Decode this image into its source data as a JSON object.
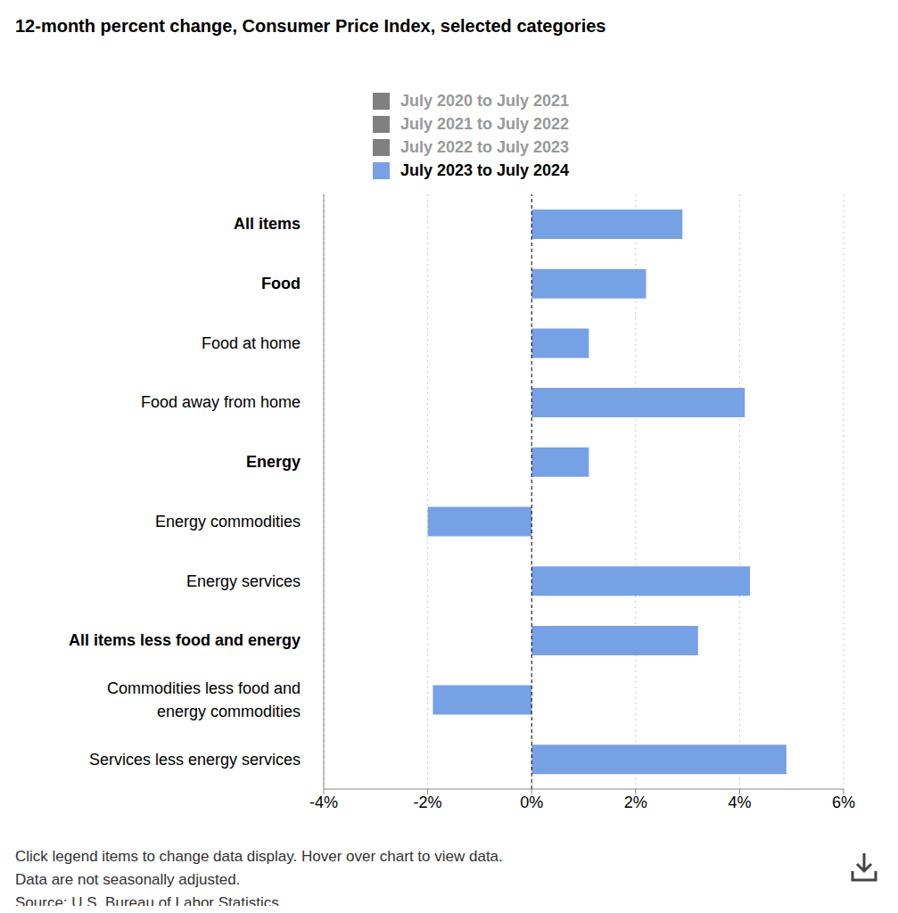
{
  "chart_data": {
    "type": "bar",
    "title": "12-month percent change, Consumer Price Index, selected categories",
    "orientation": "horizontal",
    "grid": true,
    "legend": "top",
    "categories": [
      "All items",
      "Food",
      "Food at home",
      "Food away from home",
      "Energy",
      "Energy commodities",
      "Energy services",
      "All items less food and energy",
      "Commodities less food and energy commodities",
      "Services less energy services"
    ],
    "series": [
      {
        "name": "July 2020 to July 2021",
        "color": "#808080",
        "values": [
          null,
          null,
          null,
          null,
          null,
          null,
          null,
          null,
          null,
          null
        ]
      },
      {
        "name": "July 2021 to July 2022",
        "color": "#808080",
        "values": [
          null,
          null,
          null,
          null,
          null,
          null,
          null,
          null,
          null,
          null
        ]
      },
      {
        "name": "July 2022 to July 2023",
        "color": "#808080",
        "values": [
          null,
          null,
          null,
          null,
          null,
          null,
          null,
          null,
          null,
          null
        ]
      },
      {
        "name": "July 2023 to July 2024",
        "color": "#77a1e5",
        "values": [
          2.9,
          2.2,
          1.1,
          4.1,
          1.1,
          -2.0,
          4.2,
          3.2,
          -1.9,
          4.9
        ]
      }
    ],
    "xlim": [
      -4,
      6
    ],
    "xticks": [
      {
        "value": -4,
        "label": "-4%"
      },
      {
        "value": -2,
        "label": "-2%"
      },
      {
        "value": 0,
        "label": "0%"
      },
      {
        "value": 2,
        "label": "2%"
      },
      {
        "value": 4,
        "label": "4%"
      },
      {
        "value": 6,
        "label": "6%"
      }
    ],
    "notes": [
      "Click legend items to change data display. Hover over chart to view data.",
      "Data are not seasonally adjusted.",
      "Source: U.S. Bureau of Labor Statistics."
    ]
  }
}
